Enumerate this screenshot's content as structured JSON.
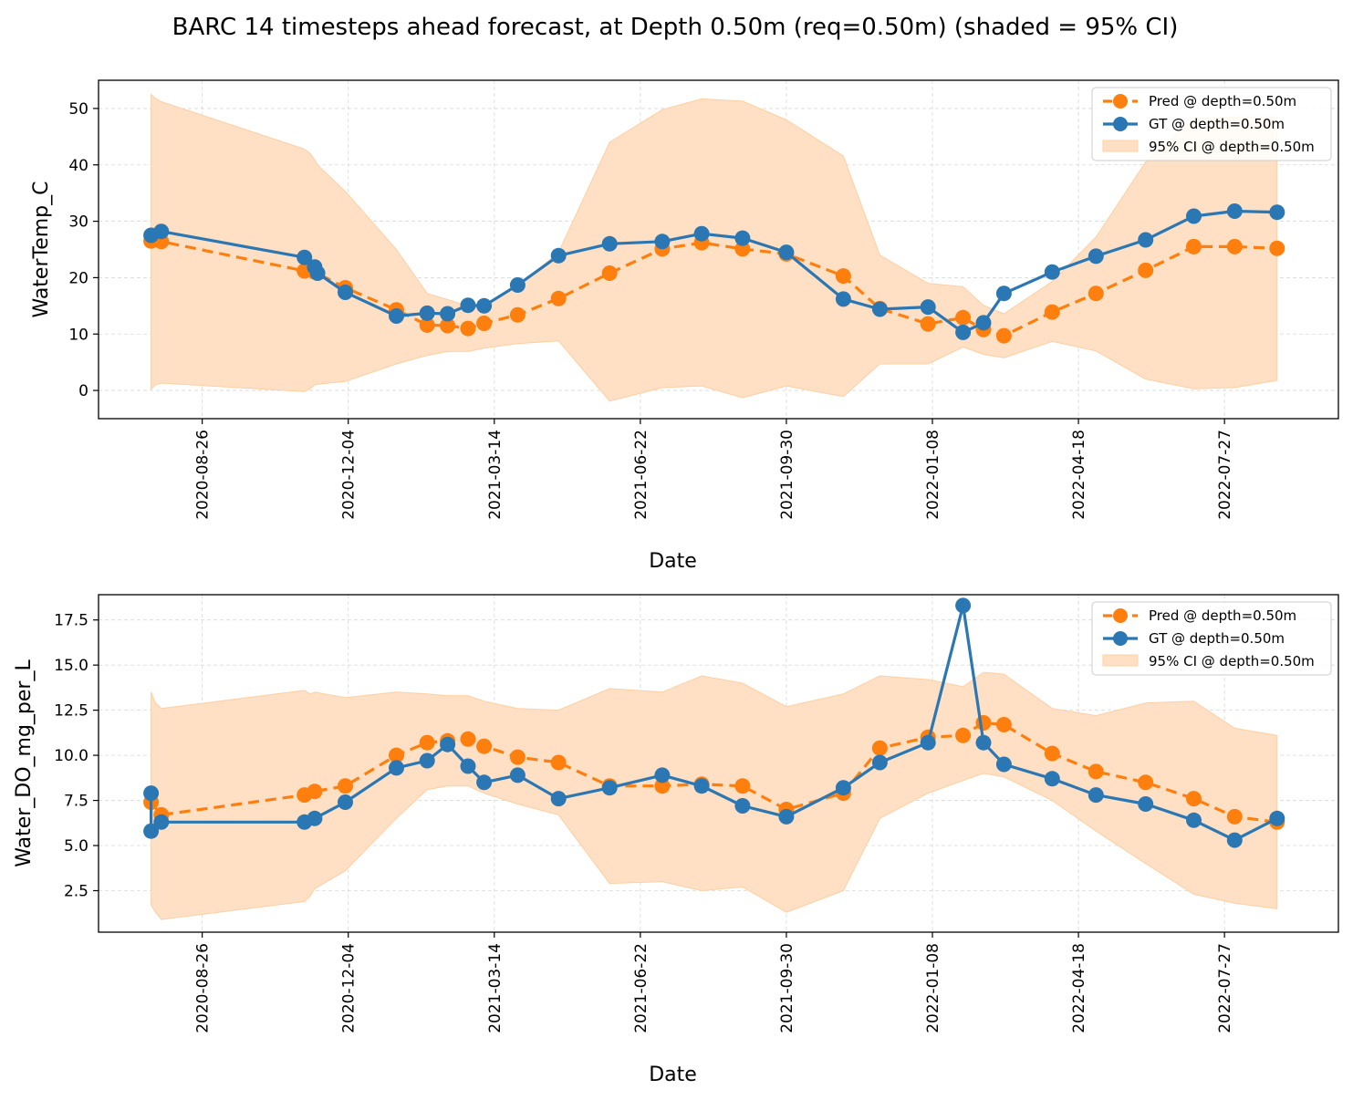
{
  "figure": {
    "title": "BARC 14 timesteps ahead forecast, at Depth 0.50m (req=0.50m) (shaded = 95% CI)"
  },
  "colors": {
    "pred": "#ff7f0e",
    "gt": "#2a77b4",
    "ci": "#ffe0c4",
    "ci_edge": "#ffcfa3",
    "grid": "#d9d9d9"
  },
  "chart_data": [
    {
      "type": "line",
      "xlabel": "Date",
      "ylabel": "WaterTemp_C",
      "x_ticks": [
        "2020-08-26",
        "2020-12-04",
        "2021-03-14",
        "2021-06-22",
        "2021-09-30",
        "2022-01-08",
        "2022-04-18",
        "2022-07-27"
      ],
      "y_ticks": [
        0,
        10,
        20,
        30,
        40,
        50
      ],
      "xlim": [
        "2020-06-16",
        "2022-10-13"
      ],
      "ylim": [
        -5,
        55
      ],
      "grid": true,
      "legend_position": "top-right",
      "legend": [
        "Pred @ depth=0.50m",
        "GT @ depth=0.50m",
        "95% CI @ depth=0.50m"
      ],
      "series": [
        {
          "name": "Pred @ depth=0.50m",
          "style": "dashed",
          "points": [
            [
              "2020-07-22",
              26.5
            ],
            [
              "2020-07-29",
              26.4
            ],
            [
              "2020-11-04",
              21.2
            ],
            [
              "2020-11-11",
              21.0
            ],
            [
              "2020-12-02",
              18.2
            ],
            [
              "2021-01-06",
              14.3
            ],
            [
              "2021-01-27",
              11.6
            ],
            [
              "2021-02-10",
              11.5
            ],
            [
              "2021-02-24",
              11.0
            ],
            [
              "2021-03-07",
              11.9
            ],
            [
              "2021-03-30",
              13.4
            ],
            [
              "2021-04-27",
              16.3
            ],
            [
              "2021-06-01",
              20.8
            ],
            [
              "2021-07-07",
              25.1
            ],
            [
              "2021-08-03",
              26.2
            ],
            [
              "2021-08-31",
              25.1
            ],
            [
              "2021-09-30",
              24.2
            ],
            [
              "2021-11-08",
              20.3
            ],
            [
              "2021-12-03",
              14.5
            ],
            [
              "2022-01-05",
              11.8
            ],
            [
              "2022-01-29",
              12.9
            ],
            [
              "2022-02-12",
              10.8
            ],
            [
              "2022-02-26",
              9.7
            ],
            [
              "2022-03-31",
              13.9
            ],
            [
              "2022-04-30",
              17.2
            ],
            [
              "2022-06-03",
              21.3
            ],
            [
              "2022-07-06",
              25.5
            ],
            [
              "2022-08-03",
              25.5
            ],
            [
              "2022-09-01",
              25.2
            ]
          ]
        },
        {
          "name": "GT @ depth=0.50m",
          "style": "solid",
          "points": [
            [
              "2020-07-22",
              27.5
            ],
            [
              "2020-07-29",
              28.2
            ],
            [
              "2020-11-04",
              23.6
            ],
            [
              "2020-11-11",
              21.9
            ],
            [
              "2020-11-13",
              20.8
            ],
            [
              "2020-12-02",
              17.4
            ],
            [
              "2021-01-06",
              13.2
            ],
            [
              "2021-01-27",
              13.7
            ],
            [
              "2021-02-10",
              13.6
            ],
            [
              "2021-02-24",
              15.1
            ],
            [
              "2021-03-07",
              15.0
            ],
            [
              "2021-03-30",
              18.7
            ],
            [
              "2021-04-27",
              23.9
            ],
            [
              "2021-06-01",
              26.0
            ],
            [
              "2021-07-07",
              26.4
            ],
            [
              "2021-08-03",
              27.8
            ],
            [
              "2021-08-31",
              27.0
            ],
            [
              "2021-09-30",
              24.5
            ],
            [
              "2021-11-08",
              16.2
            ],
            [
              "2021-12-03",
              14.4
            ],
            [
              "2022-01-05",
              14.8
            ],
            [
              "2022-01-29",
              10.3
            ],
            [
              "2022-02-12",
              12.0
            ],
            [
              "2022-02-26",
              17.2
            ],
            [
              "2022-03-31",
              21.0
            ],
            [
              "2022-04-30",
              23.8
            ],
            [
              "2022-06-03",
              26.7
            ],
            [
              "2022-07-06",
              30.9
            ],
            [
              "2022-08-03",
              31.8
            ],
            [
              "2022-09-01",
              31.6
            ]
          ]
        }
      ],
      "ci_band": [
        [
          "2020-07-22",
          0.2,
          52.5
        ],
        [
          "2020-07-25",
          1.0,
          51.8
        ],
        [
          "2020-07-29",
          1.3,
          51.2
        ],
        [
          "2020-11-04",
          -0.2,
          42.8
        ],
        [
          "2020-11-08",
          0.3,
          42.0
        ],
        [
          "2020-11-11",
          1.0,
          40.9
        ],
        [
          "2020-11-13",
          1.1,
          40.0
        ],
        [
          "2020-12-02",
          1.6,
          35.3
        ],
        [
          "2021-01-06",
          4.7,
          25.0
        ],
        [
          "2021-01-27",
          6.2,
          17.2
        ],
        [
          "2021-02-10",
          6.9,
          16.1
        ],
        [
          "2021-02-24",
          6.9,
          15.0
        ],
        [
          "2021-03-07",
          7.5,
          15.2
        ],
        [
          "2021-03-30",
          8.3,
          18.5
        ],
        [
          "2021-04-27",
          8.8,
          24.5
        ],
        [
          "2021-06-01",
          -1.9,
          44.0
        ],
        [
          "2021-07-07",
          0.5,
          49.8
        ],
        [
          "2021-08-03",
          0.8,
          51.7
        ],
        [
          "2021-08-31",
          -1.3,
          51.3
        ],
        [
          "2021-09-30",
          0.8,
          48.0
        ],
        [
          "2021-11-08",
          -1.1,
          41.6
        ],
        [
          "2021-12-03",
          4.7,
          24.0
        ],
        [
          "2022-01-05",
          4.7,
          19.0
        ],
        [
          "2022-01-29",
          7.7,
          18.4
        ],
        [
          "2022-02-12",
          6.4,
          15.1
        ],
        [
          "2022-02-26",
          5.8,
          13.6
        ],
        [
          "2022-03-31",
          8.7,
          19.3
        ],
        [
          "2022-04-30",
          7.0,
          27.2
        ],
        [
          "2022-06-03",
          2.0,
          40.5
        ],
        [
          "2022-07-06",
          0.3,
          48.2
        ],
        [
          "2022-08-03",
          0.5,
          48.5
        ],
        [
          "2022-09-01",
          1.8,
          48.5
        ]
      ]
    },
    {
      "type": "line",
      "xlabel": "Date",
      "ylabel": "Water_DO_mg_per_L",
      "x_ticks": [
        "2020-08-26",
        "2020-12-04",
        "2021-03-14",
        "2021-06-22",
        "2021-09-30",
        "2022-01-08",
        "2022-04-18",
        "2022-07-27"
      ],
      "y_ticks": [
        2.5,
        5.0,
        7.5,
        10.0,
        12.5,
        15.0,
        17.5
      ],
      "xlim": [
        "2020-06-16",
        "2022-10-13"
      ],
      "ylim": [
        0.2,
        18.9
      ],
      "grid": true,
      "legend_position": "top-right",
      "legend": [
        "Pred @ depth=0.50m",
        "GT @ depth=0.50m",
        "95% CI @ depth=0.50m"
      ],
      "series": [
        {
          "name": "Pred @ depth=0.50m",
          "style": "dashed",
          "points": [
            [
              "2020-07-22",
              7.4
            ],
            [
              "2020-07-29",
              6.7
            ],
            [
              "2020-11-04",
              7.8
            ],
            [
              "2020-11-11",
              8.0
            ],
            [
              "2020-12-02",
              8.3
            ],
            [
              "2021-01-06",
              10.0
            ],
            [
              "2021-01-27",
              10.7
            ],
            [
              "2021-02-10",
              10.8
            ],
            [
              "2021-02-24",
              10.9
            ],
            [
              "2021-03-07",
              10.5
            ],
            [
              "2021-03-30",
              9.9
            ],
            [
              "2021-04-27",
              9.6
            ],
            [
              "2021-06-01",
              8.3
            ],
            [
              "2021-07-07",
              8.3
            ],
            [
              "2021-08-03",
              8.4
            ],
            [
              "2021-08-31",
              8.3
            ],
            [
              "2021-09-30",
              7.0
            ],
            [
              "2021-11-08",
              7.9
            ],
            [
              "2021-12-03",
              10.4
            ],
            [
              "2022-01-05",
              11.0
            ],
            [
              "2022-01-29",
              11.1
            ],
            [
              "2022-02-12",
              11.8
            ],
            [
              "2022-02-26",
              11.7
            ],
            [
              "2022-03-31",
              10.1
            ],
            [
              "2022-04-30",
              9.1
            ],
            [
              "2022-06-03",
              8.5
            ],
            [
              "2022-07-06",
              7.6
            ],
            [
              "2022-08-03",
              6.6
            ],
            [
              "2022-09-01",
              6.3
            ]
          ]
        },
        {
          "name": "GT @ depth=0.50m",
          "style": "solid",
          "points": [
            [
              "2020-07-22",
              7.9
            ],
            [
              "2020-07-22",
              5.8
            ],
            [
              "2020-07-29",
              6.3
            ],
            [
              "2020-11-04",
              6.3
            ],
            [
              "2020-11-11",
              6.5
            ],
            [
              "2020-12-02",
              7.4
            ],
            [
              "2021-01-06",
              9.3
            ],
            [
              "2021-01-27",
              9.7
            ],
            [
              "2021-02-10",
              10.6
            ],
            [
              "2021-02-24",
              9.4
            ],
            [
              "2021-03-07",
              8.5
            ],
            [
              "2021-03-30",
              8.9
            ],
            [
              "2021-04-27",
              7.6
            ],
            [
              "2021-06-01",
              8.2
            ],
            [
              "2021-07-07",
              8.9
            ],
            [
              "2021-08-03",
              8.3
            ],
            [
              "2021-08-31",
              7.2
            ],
            [
              "2021-09-30",
              6.6
            ],
            [
              "2021-11-08",
              8.2
            ],
            [
              "2021-12-03",
              9.6
            ],
            [
              "2022-01-05",
              10.7
            ],
            [
              "2022-01-29",
              18.3
            ],
            [
              "2022-02-12",
              10.7
            ],
            [
              "2022-02-26",
              9.5
            ],
            [
              "2022-03-31",
              8.7
            ],
            [
              "2022-04-30",
              7.8
            ],
            [
              "2022-06-03",
              7.3
            ],
            [
              "2022-07-06",
              6.4
            ],
            [
              "2022-08-03",
              5.3
            ],
            [
              "2022-09-01",
              6.5
            ]
          ]
        }
      ],
      "ci_band": [
        [
          "2020-07-22",
          1.7,
          13.5
        ],
        [
          "2020-07-25",
          1.3,
          12.9
        ],
        [
          "2020-07-29",
          0.9,
          12.6
        ],
        [
          "2020-11-04",
          1.9,
          13.6
        ],
        [
          "2020-11-08",
          2.2,
          13.4
        ],
        [
          "2020-11-11",
          2.6,
          13.5
        ],
        [
          "2020-12-02",
          3.6,
          13.2
        ],
        [
          "2021-01-06",
          6.5,
          13.5
        ],
        [
          "2021-01-27",
          8.1,
          13.4
        ],
        [
          "2021-02-10",
          8.3,
          13.3
        ],
        [
          "2021-02-24",
          8.3,
          13.3
        ],
        [
          "2021-03-07",
          7.9,
          13.0
        ],
        [
          "2021-03-30",
          7.3,
          12.6
        ],
        [
          "2021-04-27",
          6.7,
          12.5
        ],
        [
          "2021-06-01",
          2.9,
          13.7
        ],
        [
          "2021-07-07",
          3.0,
          13.5
        ],
        [
          "2021-08-03",
          2.5,
          14.4
        ],
        [
          "2021-08-31",
          2.7,
          14.0
        ],
        [
          "2021-09-30",
          1.3,
          12.7
        ],
        [
          "2021-11-08",
          2.5,
          13.4
        ],
        [
          "2021-12-03",
          6.5,
          14.4
        ],
        [
          "2022-01-05",
          7.9,
          14.2
        ],
        [
          "2022-01-29",
          8.6,
          13.8
        ],
        [
          "2022-02-12",
          9.0,
          14.6
        ],
        [
          "2022-02-26",
          8.8,
          14.5
        ],
        [
          "2022-03-31",
          7.5,
          12.6
        ],
        [
          "2022-04-30",
          5.8,
          12.2
        ],
        [
          "2022-06-03",
          4.0,
          12.9
        ],
        [
          "2022-07-06",
          2.3,
          13.0
        ],
        [
          "2022-08-03",
          1.8,
          11.5
        ],
        [
          "2022-09-01",
          1.5,
          11.1
        ]
      ]
    }
  ]
}
